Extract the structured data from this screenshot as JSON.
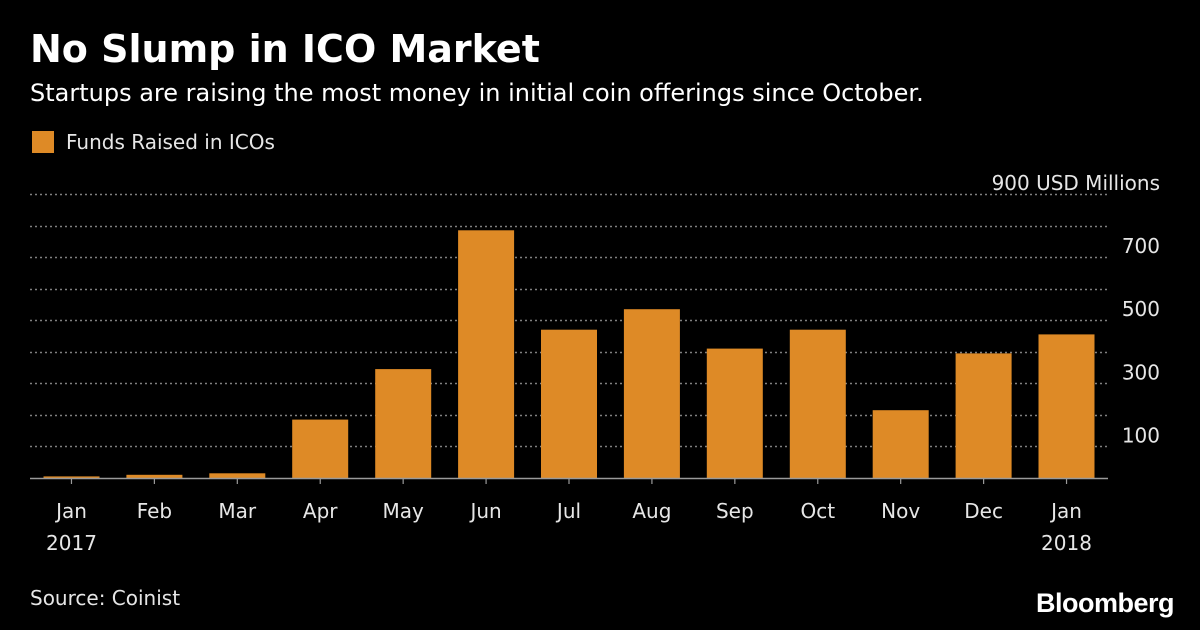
{
  "header": {
    "title": "No Slump in ICO Market",
    "subtitle": "Startups are raising the most money in initial coin offerings since October."
  },
  "legend": {
    "label": "Funds Raised in ICOs"
  },
  "footer": {
    "source": "Source: Coinist",
    "brand": "Bloomberg"
  },
  "colors": {
    "background": "#000000",
    "bar": "#DE8A26",
    "grid": "#808080",
    "axis": "#9a9a9a",
    "text": "#ffffff",
    "muted_text": "#e6e6e6"
  },
  "chart_data": {
    "type": "bar",
    "title": "No Slump in ICO Market",
    "subtitle": "Startups are raising the most money in initial coin offerings since October.",
    "categories": [
      "Jan 2017",
      "Feb",
      "Mar",
      "Apr",
      "May",
      "Jun",
      "Jul",
      "Aug",
      "Sep",
      "Oct",
      "Nov",
      "Dec",
      "Jan 2018"
    ],
    "category_labels": [
      [
        "Jan",
        "2017"
      ],
      [
        "Feb"
      ],
      [
        "Mar"
      ],
      [
        "Apr"
      ],
      [
        "May"
      ],
      [
        "Jun"
      ],
      [
        "Jul"
      ],
      [
        "Aug"
      ],
      [
        "Sep"
      ],
      [
        "Oct"
      ],
      [
        "Nov"
      ],
      [
        "Dec"
      ],
      [
        "Jan",
        "2018"
      ]
    ],
    "series": [
      {
        "name": "Funds Raised in ICOs",
        "values": [
          5,
          10,
          15,
          185,
          345,
          785,
          470,
          535,
          410,
          470,
          215,
          395,
          455
        ]
      }
    ],
    "ylim": [
      0,
      900
    ],
    "y_unit_label": "900 USD Millions",
    "y_ticks": [
      100,
      300,
      500,
      700,
      900
    ],
    "y_tick_labels": [
      "100",
      "300",
      "500",
      "700",
      "900 USD Millions"
    ],
    "gridlines": [
      100,
      200,
      300,
      400,
      500,
      600,
      700,
      800,
      900
    ],
    "grid": true,
    "grid_style": "dotted",
    "y_axis_side": "right",
    "legend_position": "top-left",
    "xlabel": "",
    "ylabel": ""
  }
}
